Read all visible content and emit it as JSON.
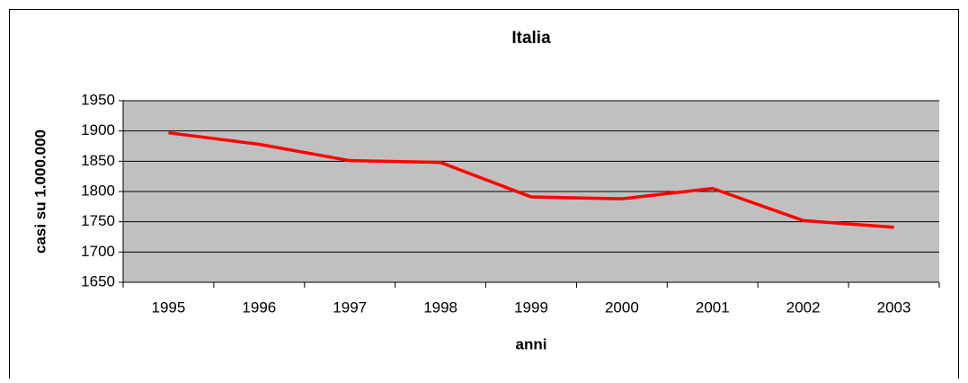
{
  "chart_data": {
    "type": "line",
    "title": "Italia",
    "x_label": "anni",
    "y_label": "casi su 1.000.000",
    "categories": [
      "1995",
      "1996",
      "1997",
      "1998",
      "1999",
      "2000",
      "2001",
      "2002",
      "2003"
    ],
    "values": [
      1897,
      1878,
      1851,
      1848,
      1791,
      1788,
      1805,
      1752,
      1741
    ],
    "color": "#ff0000",
    "plot_background": "#c0c0c0",
    "ylim": [
      1650,
      1950
    ],
    "yticks": [
      1650,
      1700,
      1750,
      1800,
      1850,
      1900,
      1950
    ],
    "grid": true
  }
}
